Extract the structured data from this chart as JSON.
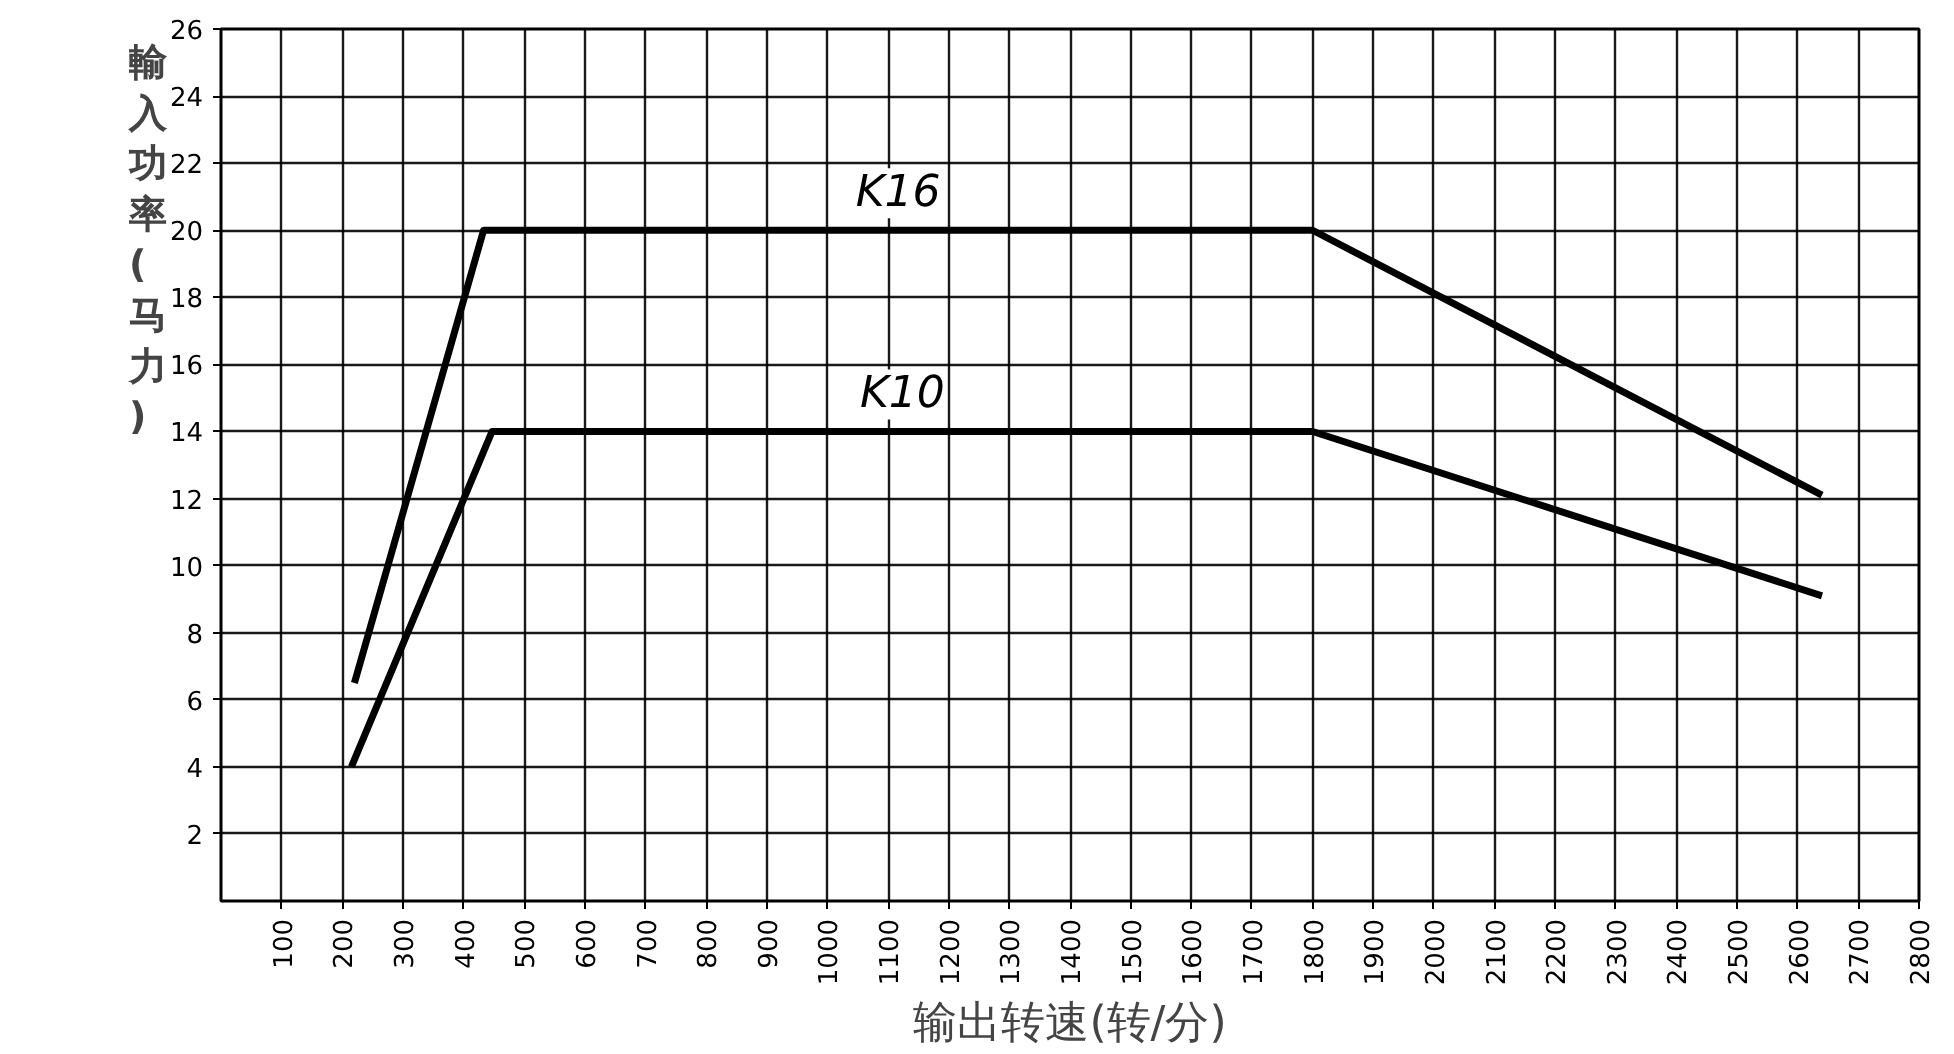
{
  "chart_data": {
    "type": "line",
    "xlabel": "输出转速(转/分)",
    "ylabel": "輸入功率(马力)",
    "series": [
      {
        "name": "K16",
        "color": "#000000",
        "x": [
          220,
          433,
          1800,
          2640
        ],
        "values": [
          6.5,
          20,
          20,
          12.1
        ]
      },
      {
        "name": "K10",
        "color": "#000000",
        "x": [
          215,
          447,
          1800,
          2640
        ],
        "values": [
          4,
          14,
          14,
          9.1
        ]
      }
    ],
    "xlim": [
      0,
      2800
    ],
    "ylim": [
      0,
      26
    ],
    "xticks": [
      100,
      200,
      300,
      400,
      500,
      600,
      700,
      800,
      900,
      1000,
      1100,
      1200,
      1300,
      1400,
      1500,
      1600,
      1700,
      1800,
      1900,
      2000,
      2100,
      2200,
      2300,
      2400,
      2500,
      2600,
      2700,
      2800
    ],
    "yticks": [
      2,
      4,
      6,
      8,
      10,
      12,
      14,
      16,
      18,
      20,
      22,
      24,
      26
    ],
    "grid": true,
    "marker": "none",
    "line_style": "solid"
  }
}
